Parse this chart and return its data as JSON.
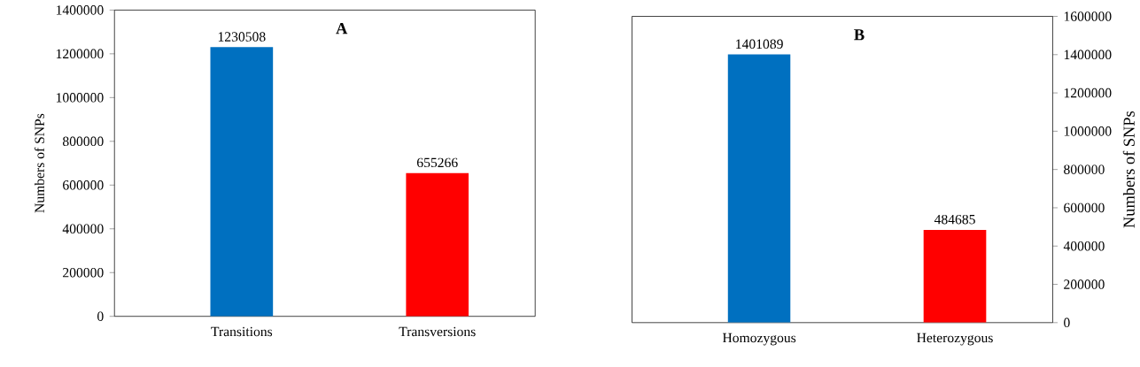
{
  "chart_data": [
    {
      "type": "bar",
      "title": "A",
      "ylabel": "Numbers of SNPs",
      "categories": [
        "Transitions",
        "Transversions"
      ],
      "values": [
        1230508,
        655266
      ],
      "colors": [
        "#0070c0",
        "#ff0000"
      ],
      "ylim": [
        0,
        1400000
      ],
      "yticks": [
        0,
        200000,
        400000,
        600000,
        800000,
        1000000,
        1200000,
        1400000
      ],
      "data_labels": true
    },
    {
      "type": "bar",
      "title": "B",
      "y2label": "Numbers of SNPs",
      "categories": [
        "Homozygous",
        "Heterozygous"
      ],
      "values": [
        1401089,
        484685
      ],
      "colors": [
        "#0070c0",
        "#ff0000"
      ],
      "y2lim": [
        0,
        1600000
      ],
      "y2ticks": [
        0,
        200000,
        400000,
        600000,
        800000,
        1000000,
        1200000,
        1400000,
        1600000
      ],
      "data_labels": true
    }
  ]
}
